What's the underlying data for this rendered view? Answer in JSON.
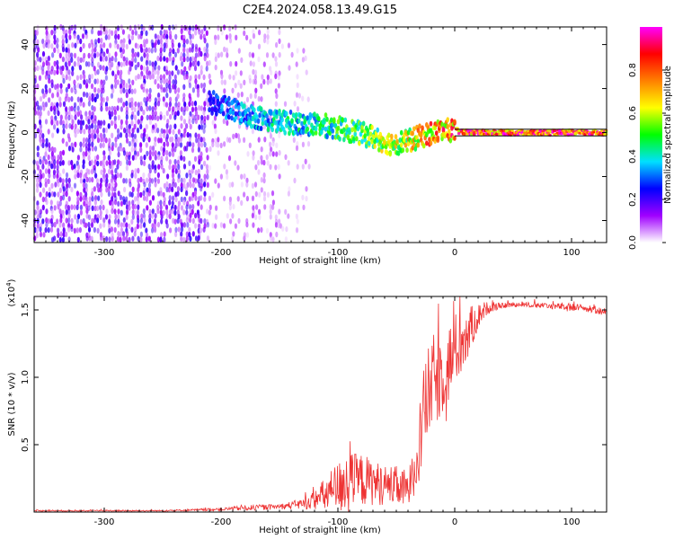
{
  "title": "C2E4.2024.058.13.49.G15",
  "chart_data": [
    {
      "type": "heatmap",
      "title": "C2E4.2024.058.13.49.G15",
      "xlabel": "Height of straight line (km)",
      "ylabel": "Frequency (Hz)",
      "xlim": [
        -360,
        130
      ],
      "ylim": [
        -50,
        48
      ],
      "x_ticks": [
        -300,
        -200,
        -100,
        0,
        100
      ],
      "y_ticks": [
        -40,
        -20,
        0,
        20,
        40
      ],
      "x_tick_labels": [
        "-300",
        "-200",
        "-100",
        "0",
        "100"
      ],
      "y_tick_labels": [
        "-40",
        "-20",
        "0",
        "20",
        "40"
      ],
      "colorbar": {
        "label": "Normalized spectral amplitude",
        "range": [
          0,
          1
        ],
        "ticks": [
          0.0,
          0.2,
          0.4,
          0.6,
          0.8
        ],
        "tick_labels": [
          "0.0",
          "0.2",
          "0.4",
          "0.6",
          "0.8"
        ],
        "colors": [
          "#ffffff",
          "#a000ff",
          "#0000ff",
          "#00e0ff",
          "#00ff00",
          "#ffff00",
          "#ff8000",
          "#ff0000",
          "#ff00ff"
        ]
      },
      "regions": [
        {
          "x": [
            -360,
            -210
          ],
          "freq_range": [
            -50,
            48
          ],
          "amplitude": 0.1,
          "pattern": "noise-dense"
        },
        {
          "x": [
            -210,
            -150
          ],
          "freq_range": [
            -50,
            48
          ],
          "amplitude": 0.05,
          "pattern": "noise-sparse"
        },
        {
          "x": [
            -150,
            -125
          ],
          "freq_range": [
            -50,
            40
          ],
          "amplitude": 0.04,
          "pattern": "noise-faint"
        }
      ],
      "signal_trace": {
        "x": [
          -210,
          -190,
          -170,
          -150,
          -130,
          -110,
          -90,
          -70,
          -55,
          -40,
          -25,
          -10,
          0,
          10,
          40,
          80,
          130
        ],
        "y": [
          14,
          10,
          7,
          5,
          4,
          3,
          1,
          -2,
          -5,
          -4,
          -1,
          1,
          1,
          0,
          0,
          0,
          0
        ],
        "amplitude": [
          0.3,
          0.35,
          0.4,
          0.45,
          0.45,
          0.5,
          0.55,
          0.6,
          0.65,
          0.7,
          0.8,
          0.85,
          0.9,
          0.95,
          0.95,
          0.95,
          0.95
        ]
      }
    },
    {
      "type": "line",
      "xlabel": "Height of straight line (km)",
      "ylabel": "SNR (10 * v/v)",
      "y_scale_label": "(x10",
      "y_scale_exponent": "4",
      "y_scale_suffix": ")",
      "xlim": [
        -360,
        130
      ],
      "ylim": [
        0,
        1.6
      ],
      "x_ticks": [
        -300,
        -200,
        -100,
        0,
        100
      ],
      "y_ticks": [
        0.5,
        1.0,
        1.5
      ],
      "x_tick_labels": [
        "-300",
        "-200",
        "-100",
        "0",
        "100"
      ],
      "y_tick_labels": [
        "0.5",
        "1.0",
        "1.5"
      ],
      "color": "#ee3333",
      "series": [
        {
          "x": [
            -360,
            -300,
            -250,
            -200,
            -180,
            -150,
            -130,
            -120,
            -110,
            -100,
            -90,
            -80,
            -70,
            -60,
            -50,
            -40,
            -35,
            -30,
            -25,
            -20,
            -15,
            -10,
            -5,
            0,
            5,
            10,
            15,
            20,
            25,
            30,
            40,
            50,
            60,
            80,
            100,
            120,
            130
          ],
          "values": [
            0.01,
            0.01,
            0.01,
            0.02,
            0.03,
            0.04,
            0.06,
            0.09,
            0.13,
            0.18,
            0.22,
            0.24,
            0.22,
            0.2,
            0.19,
            0.16,
            0.3,
            0.55,
            0.8,
            0.95,
            1.0,
            1.05,
            1.1,
            1.2,
            1.25,
            1.3,
            1.38,
            1.45,
            1.5,
            1.52,
            1.53,
            1.54,
            1.54,
            1.53,
            1.52,
            1.5,
            1.48
          ],
          "noise_amplitude": [
            0.005,
            0.005,
            0.005,
            0.01,
            0.02,
            0.02,
            0.04,
            0.07,
            0.14,
            0.2,
            0.22,
            0.2,
            0.17,
            0.15,
            0.15,
            0.15,
            0.2,
            0.3,
            0.35,
            0.35,
            0.35,
            0.32,
            0.3,
            0.28,
            0.25,
            0.22,
            0.15,
            0.1,
            0.06,
            0.04,
            0.02,
            0.02,
            0.02,
            0.02,
            0.03,
            0.03,
            0.02
          ]
        }
      ]
    }
  ]
}
